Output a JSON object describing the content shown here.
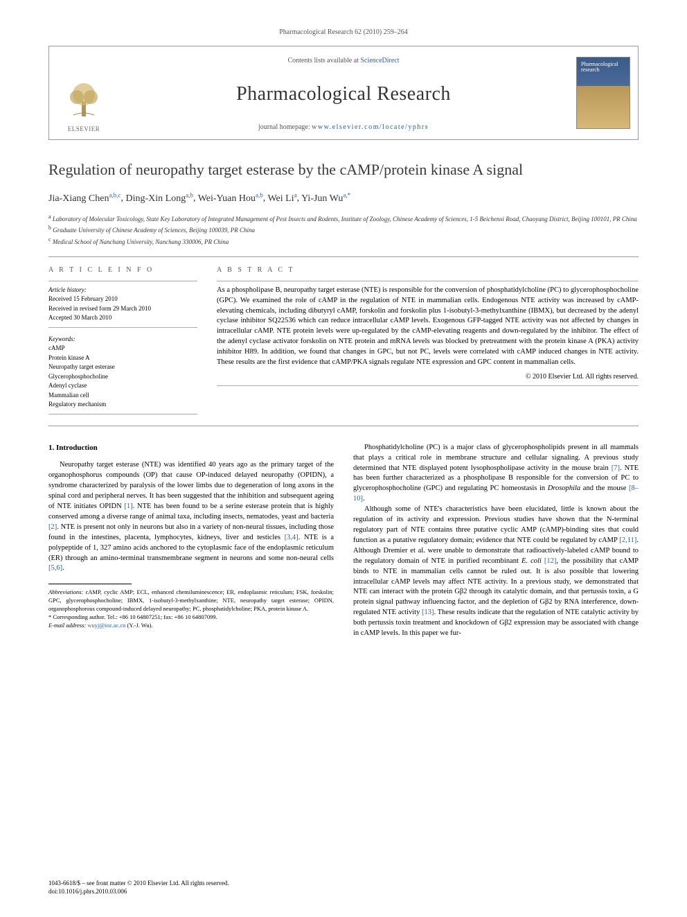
{
  "header_line": "Pharmacological Research 62 (2010) 259–264",
  "contents_prefix": "Contents lists available at ",
  "contents_link": "ScienceDirect",
  "journal_name": "Pharmacological Research",
  "homepage_prefix": "journal homepage: ",
  "homepage_url": "www.elsevier.com/locate/yphrs",
  "publisher_logo_text": "ELSEVIER",
  "title": "Regulation of neuropathy target esterase by the cAMP/protein kinase A signal",
  "authors_html": "Jia-Xiang Chen",
  "authors": [
    {
      "name": "Jia-Xiang Chen",
      "affs": "a,b,c"
    },
    {
      "name": "Ding-Xin Long",
      "affs": "a,b"
    },
    {
      "name": "Wei-Yuan Hou",
      "affs": "a,b"
    },
    {
      "name": "Wei Li",
      "affs": "a"
    },
    {
      "name": "Yi-Jun Wu",
      "affs": "a,*"
    }
  ],
  "affiliations": [
    {
      "sup": "a",
      "text": "Laboratory of Molecular Toxicology, State Key Laboratory of Integrated Management of Pest Insects and Rodents, Institute of Zoology, Chinese Academy of Sciences, 1-5 Beichenxi Road, Chaoyang District, Beijing 100101, PR China"
    },
    {
      "sup": "b",
      "text": "Graduate University of Chinese Academy of Sciences, Beijing 100039, PR China"
    },
    {
      "sup": "c",
      "text": "Medical School of Nanchang University, Nanchang 330006, PR China"
    }
  ],
  "article_info_heading": "A R T I C L E   I N F O",
  "abstract_heading": "A B S T R A C T",
  "history_label": "Article history:",
  "history": [
    "Received 15 February 2010",
    "Received in revised form 29 March 2010",
    "Accepted 30 March 2010"
  ],
  "keywords_label": "Keywords:",
  "keywords": [
    "cAMP",
    "Protein kinase A",
    "Neuropathy target esterase",
    "Glycerophosphocholine",
    "Adenyl cyclase",
    "Mammalian cell",
    "Regulatory mechanism"
  ],
  "abstract": "As a phospholipase B, neuropathy target esterase (NTE) is responsible for the conversion of phosphatidylcholine (PC) to glycerophosphocholine (GPC). We examined the role of cAMP in the regulation of NTE in mammalian cells. Endogenous NTE activity was increased by cAMP-elevating chemicals, including dibutyryl cAMP, forskolin and forskolin plus 1-isobutyl-3-methylxanthine (IBMX), but decreased by the adenyl cyclase inhibitor SQ22536 which can reduce intracellular cAMP levels. Exogenous GFP-tagged NTE activity was not affected by changes in intracellular cAMP. NTE protein levels were up-regulated by the cAMP-elevating reagents and down-regulated by the inhibitor. The effect of the adenyl cyclase activator forskolin on NTE protein and mRNA levels was blocked by pretreatment with the protein kinase A (PKA) activity inhibitor H89. In addition, we found that changes in GPC, but not PC, levels were correlated with cAMP induced changes in NTE activity. These results are the first evidence that cAMP/PKA signals regulate NTE expression and GPC content in mammalian cells.",
  "copyright": "© 2010 Elsevier Ltd. All rights reserved.",
  "intro_heading": "1.  Introduction",
  "intro_p1": "Neuropathy target esterase (NTE) was identified 40 years ago as the primary target of the organophosphorus compounds (OP) that cause OP-induced delayed neuropathy (OPIDN), a syndrome characterized by paralysis of the lower limbs due to degeneration of long axons in the spinal cord and peripheral nerves. It has been suggested that the inhibition and subsequent ageing of NTE initiates OPIDN [1]. NTE has been found to be a serine esterase protein that is highly conserved among a diverse range of animal taxa, including insects, nematodes, yeast and bacteria [2]. NTE is present not only in neurons but also in a variety of non-neural tissues, including those found in the intestines, placenta, lymphocytes, kidneys, liver and testicles [3,4]. NTE is a polypeptide of 1, 327 amino acids anchored to the cytoplasmic face of the endoplasmic reticulum (ER) through an amino-terminal transmembrane segment in neurons and some non-neural cells [5,6].",
  "intro_p2": "Phosphatidylcholine (PC) is a major class of glycerophospholipids present in all mammals that plays a critical role in membrane structure and cellular signaling. A previous study determined that NTE displayed potent lysophospholipase activity in the mouse brain [7]. NTE has been further characterized as a phospholipase B responsible for the conversion of PC to glycerophosphocholine (GPC) and regulating PC homeostasis in Drosophila and the mouse [8–10].",
  "intro_p3": "Although some of NTE's characteristics have been elucidated, little is known about the regulation of its activity and expression. Previous studies have shown that the N-terminal regulatory part of NTE contains three putative cyclic AMP (cAMP)-binding sites that could function as a putative regulatory domain; evidence that NTE could be regulated by cAMP [2,11]. Although Dremier et al. were unable to demonstrate that radioactively-labeled cAMP bound to the regulatory domain of NTE in purified recombinant E. coli [12], the possibility that cAMP binds to NTE in mammalian cells cannot be ruled out. It is also possible that lowering intracellular cAMP levels may affect NTE activity. In a previous study, we demonstrated that NTE can interact with the protein Gβ2 through its catalytic domain, and that pertussis toxin, a G protein signal pathway influencing factor, and the depletion of Gβ2 by RNA interference, down-regulated NTE activity [13]. These results indicate that the regulation of NTE catalytic activity by both pertussis toxin treatment and knockdown of Gβ2 expression may be associated with change in cAMP levels. In this paper we fur-",
  "abbrev_label": "Abbreviations:",
  "abbrev_text": " cAMP, cyclic AMP; ECL, enhanced chemiluminescence; ER, endoplasmic reticulum; FSK, forskolin; GPC, glycerophosphocholine; IBMX, 1-isobutyl-3-methylxanthine; NTE, neuropathy target esterase; OPIDN, organophosphorous compound-induced delayed neuropathy; PC, phosphatidylcholine; PKA, protein kinase A.",
  "corr_label": "* Corresponding author. ",
  "corr_text": "Tel.: +86 10 64807251; fax: +86 10 64807099.",
  "email_label": "E-mail address: ",
  "email": "wuyj@ioz.ac.cn",
  "email_suffix": " (Y.-J. Wu).",
  "footer_line1": "1043-6618/$ – see front matter © 2010 Elsevier Ltd. All rights reserved.",
  "footer_line2": "doi:10.1016/j.phrs.2010.03.006",
  "colors": {
    "link": "#2a5db0",
    "text": "#000000",
    "muted": "#555555",
    "border": "#999999"
  }
}
